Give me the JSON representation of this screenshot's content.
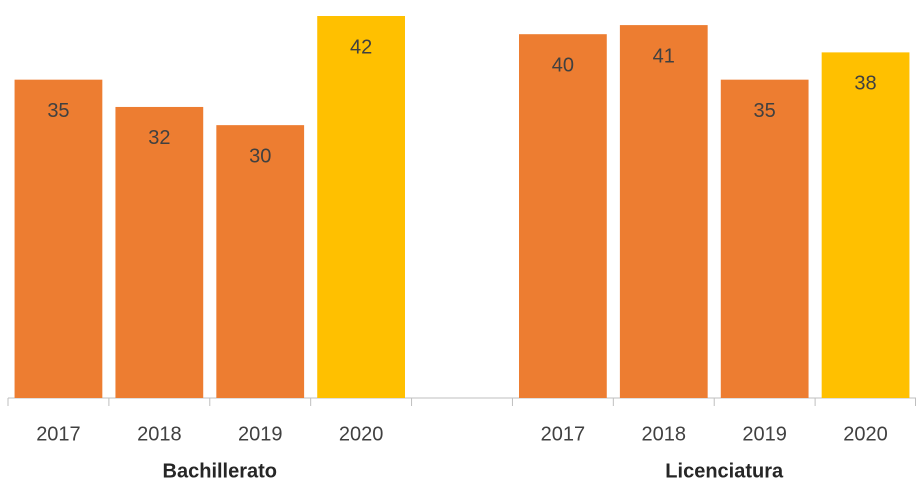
{
  "chart_data": {
    "type": "bar",
    "categories": [
      "2017",
      "2018",
      "2019",
      "2020",
      null,
      "2017",
      "2018",
      "2019",
      "2020"
    ],
    "values": [
      35,
      32,
      30,
      42,
      null,
      40,
      41,
      35,
      38
    ],
    "colors": [
      "#ED7D31",
      "#ED7D31",
      "#ED7D31",
      "#FFC000",
      null,
      "#ED7D31",
      "#ED7D31",
      "#ED7D31",
      "#FFC000"
    ],
    "groups": [
      "Bachillerato",
      "Licenciatura"
    ]
  }
}
